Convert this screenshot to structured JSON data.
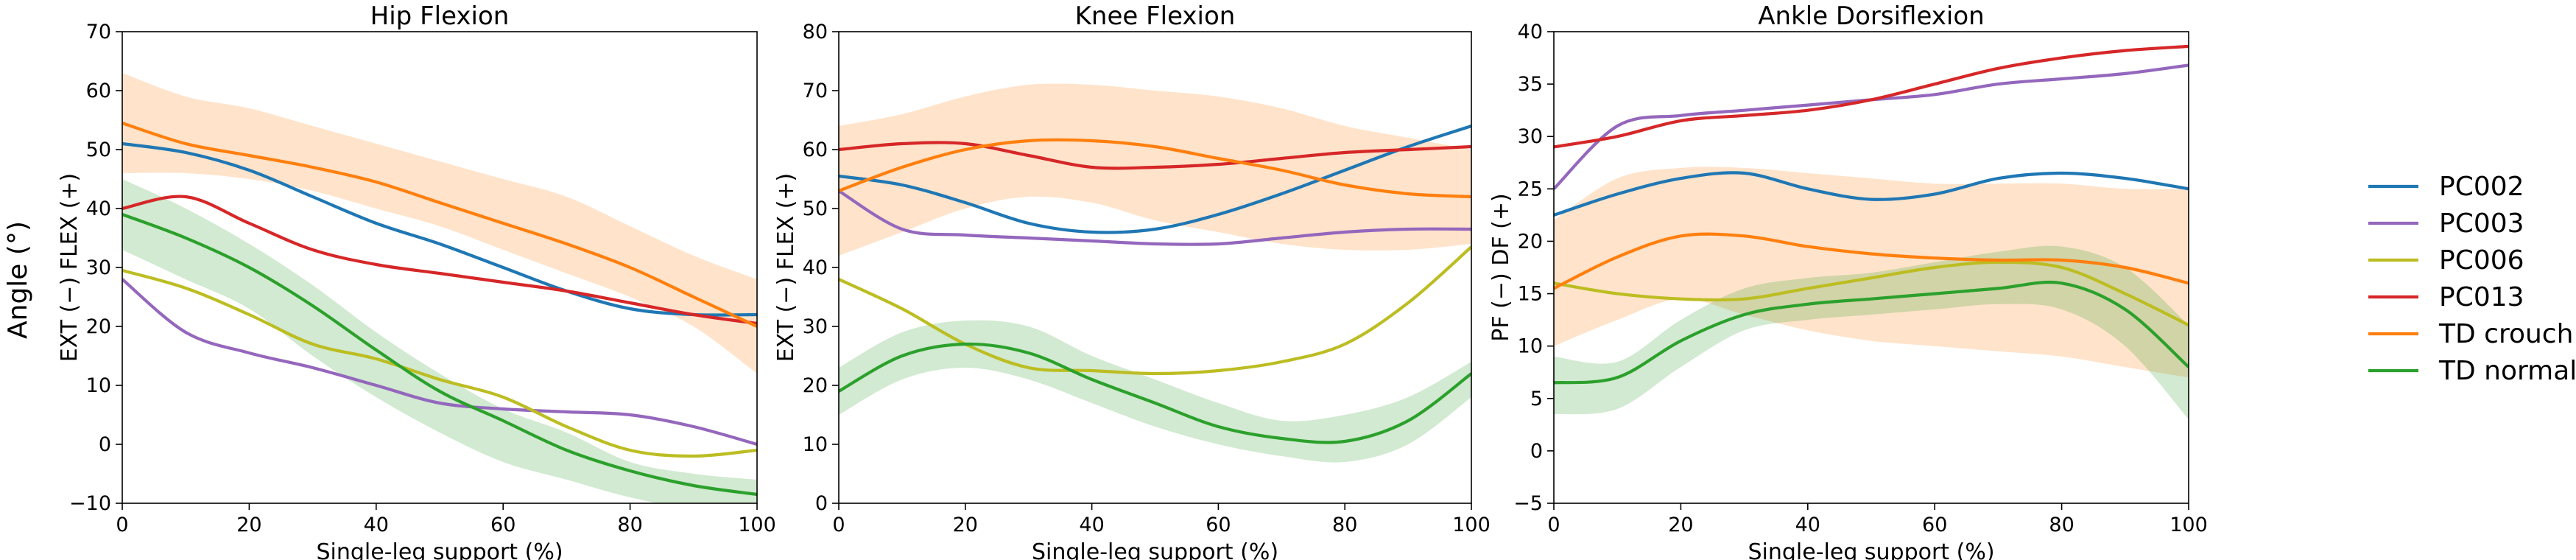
{
  "figure": {
    "shared_ylabel": "Angle (°)"
  },
  "legend": [
    {
      "label": "PC002",
      "color": "#1f77b4"
    },
    {
      "label": "PC003",
      "color": "#9467bd"
    },
    {
      "label": "PC006",
      "color": "#bcbd22"
    },
    {
      "label": "PC013",
      "color": "#d62728"
    },
    {
      "label": "TD crouch",
      "color": "#ff7f0e"
    },
    {
      "label": "TD normal",
      "color": "#2ca02c"
    }
  ],
  "chart_data": [
    {
      "type": "line",
      "title": "Hip Flexion",
      "xlabel": "Single-leg support (%)",
      "ylabel": "EXT (−) FLEX (+)",
      "xlim": [
        0,
        100
      ],
      "ylim": [
        -10,
        70
      ],
      "xticks": [
        0,
        20,
        40,
        60,
        80,
        100
      ],
      "yticks": [
        -10,
        0,
        10,
        20,
        30,
        40,
        50,
        60,
        70
      ],
      "x": [
        0,
        10,
        20,
        30,
        40,
        50,
        60,
        70,
        80,
        90,
        100
      ],
      "bands": [
        {
          "name": "TD crouch",
          "color": "#ff7f0e",
          "lower": [
            46,
            46,
            45,
            43,
            40,
            37,
            33,
            29,
            25,
            20,
            12
          ],
          "upper": [
            63,
            59,
            57,
            54,
            51,
            48,
            45,
            42,
            37,
            32,
            28
          ]
        },
        {
          "name": "TD normal",
          "color": "#2ca02c",
          "lower": [
            33,
            28,
            23,
            15,
            8,
            2,
            -3,
            -6,
            -9,
            -11,
            -12
          ],
          "upper": [
            45,
            40,
            34,
            27,
            19,
            12,
            6,
            2,
            -3,
            -5,
            -6
          ]
        }
      ],
      "series": [
        {
          "name": "PC002",
          "color": "#1f77b4",
          "values": [
            51,
            49.5,
            46.5,
            42,
            37.5,
            34,
            30,
            26,
            23,
            22,
            22
          ]
        },
        {
          "name": "PC003",
          "color": "#9467bd",
          "values": [
            28,
            19,
            15.5,
            13,
            10,
            7,
            6,
            5.5,
            5,
            3,
            0
          ]
        },
        {
          "name": "PC006",
          "color": "#bcbd22",
          "values": [
            29.5,
            26.5,
            22,
            17,
            14.5,
            11,
            8,
            3,
            -1,
            -2,
            -1
          ]
        },
        {
          "name": "PC013",
          "color": "#d62728",
          "values": [
            40,
            42,
            37.5,
            33,
            30.5,
            29,
            27.5,
            26,
            24,
            22,
            20.5
          ]
        },
        {
          "name": "TD crouch",
          "color": "#ff7f0e",
          "values": [
            54.5,
            51,
            49,
            47,
            44.5,
            41,
            37.5,
            34,
            30,
            25,
            20
          ]
        },
        {
          "name": "TD normal",
          "color": "#2ca02c",
          "values": [
            39,
            35,
            30,
            23.5,
            16,
            9,
            4,
            -1,
            -4.5,
            -7,
            -8.5
          ]
        }
      ]
    },
    {
      "type": "line",
      "title": "Knee Flexion",
      "xlabel": "Single-leg support (%)",
      "ylabel": "EXT (−) FLEX (+)",
      "xlim": [
        0,
        100
      ],
      "ylim": [
        0,
        80
      ],
      "xticks": [
        0,
        20,
        40,
        60,
        80,
        100
      ],
      "yticks": [
        0,
        10,
        20,
        30,
        40,
        50,
        60,
        70,
        80
      ],
      "x": [
        0,
        10,
        20,
        30,
        40,
        50,
        60,
        70,
        80,
        90,
        100
      ],
      "bands": [
        {
          "name": "TD crouch",
          "color": "#ff7f0e",
          "lower": [
            42,
            46,
            50,
            52,
            51,
            48,
            46,
            44,
            43,
            43,
            44
          ],
          "upper": [
            64,
            66,
            69,
            71,
            71,
            70,
            69,
            67,
            64,
            62,
            60
          ]
        },
        {
          "name": "TD normal",
          "color": "#2ca02c",
          "lower": [
            15,
            21,
            23,
            21,
            17,
            13,
            10,
            8,
            7,
            10,
            18
          ],
          "upper": [
            23,
            29,
            31,
            30,
            25,
            21,
            17,
            14,
            15,
            18,
            24
          ]
        }
      ],
      "series": [
        {
          "name": "PC002",
          "color": "#1f77b4",
          "values": [
            55.5,
            54,
            51,
            47.5,
            46,
            46.5,
            49,
            52.5,
            56.5,
            60.5,
            64
          ]
        },
        {
          "name": "PC003",
          "color": "#9467bd",
          "values": [
            53,
            46.5,
            45.5,
            45,
            44.5,
            44,
            44,
            45,
            46,
            46.5,
            46.5
          ]
        },
        {
          "name": "PC006",
          "color": "#bcbd22",
          "values": [
            38,
            33,
            27,
            23,
            22.5,
            22,
            22.5,
            24,
            27,
            34,
            43.5
          ]
        },
        {
          "name": "PC013",
          "color": "#d62728",
          "values": [
            60,
            61,
            61,
            59,
            57,
            57,
            57.5,
            58.5,
            59.5,
            60,
            60.5
          ]
        },
        {
          "name": "TD crouch",
          "color": "#ff7f0e",
          "values": [
            53,
            57,
            60,
            61.5,
            61.5,
            60.5,
            58.5,
            56.5,
            54,
            52.5,
            52
          ]
        },
        {
          "name": "TD normal",
          "color": "#2ca02c",
          "values": [
            19,
            25,
            27,
            25.5,
            21,
            17,
            13,
            11,
            10.5,
            14,
            22
          ]
        }
      ]
    },
    {
      "type": "line",
      "title": "Ankle Dorsiflexion",
      "xlabel": "Single-leg support (%)",
      "ylabel": "PF (−) DF (+)",
      "xlim": [
        0,
        100
      ],
      "ylim": [
        -5,
        40
      ],
      "xticks": [
        0,
        20,
        40,
        60,
        80,
        100
      ],
      "yticks": [
        -5,
        0,
        5,
        10,
        15,
        20,
        25,
        30,
        35,
        40
      ],
      "x": [
        0,
        10,
        20,
        30,
        40,
        50,
        60,
        70,
        80,
        90,
        100
      ],
      "bands": [
        {
          "name": "TD crouch",
          "color": "#ff7f0e",
          "lower": [
            10,
            12.5,
            14.5,
            13,
            11.5,
            10.5,
            10,
            9.5,
            9,
            8,
            7
          ],
          "upper": [
            22,
            26,
            27,
            27,
            26.5,
            26,
            25.5,
            25.5,
            25.5,
            25,
            25
          ]
        },
        {
          "name": "TD normal",
          "color": "#2ca02c",
          "lower": [
            3.5,
            4,
            8,
            11.5,
            12.5,
            13,
            13.5,
            14,
            13.5,
            10,
            3
          ],
          "upper": [
            9,
            8.5,
            12.5,
            15.5,
            16.5,
            17,
            18,
            19,
            19.5,
            17.5,
            12
          ]
        }
      ],
      "series": [
        {
          "name": "PC002",
          "color": "#1f77b4",
          "values": [
            22.5,
            24.5,
            26,
            26.5,
            25,
            24,
            24.5,
            26,
            26.5,
            26,
            25
          ]
        },
        {
          "name": "PC003",
          "color": "#9467bd",
          "values": [
            25,
            31,
            32,
            32.5,
            33,
            33.5,
            34,
            35,
            35.5,
            36,
            36.8
          ]
        },
        {
          "name": "PC006",
          "color": "#bcbd22",
          "values": [
            16,
            15,
            14.5,
            14.5,
            15.5,
            16.5,
            17.5,
            18,
            17.5,
            15,
            12
          ]
        },
        {
          "name": "PC013",
          "color": "#d62728",
          "values": [
            29,
            30,
            31.5,
            32,
            32.5,
            33.5,
            35,
            36.5,
            37.5,
            38.2,
            38.6
          ]
        },
        {
          "name": "TD crouch",
          "color": "#ff7f0e",
          "values": [
            15.5,
            18.5,
            20.5,
            20.5,
            19.5,
            18.8,
            18.4,
            18.2,
            18.2,
            17.5,
            16
          ]
        },
        {
          "name": "TD normal",
          "color": "#2ca02c",
          "values": [
            6.5,
            7,
            10.5,
            13,
            14,
            14.5,
            15,
            15.5,
            16,
            13.5,
            8
          ]
        }
      ]
    }
  ]
}
